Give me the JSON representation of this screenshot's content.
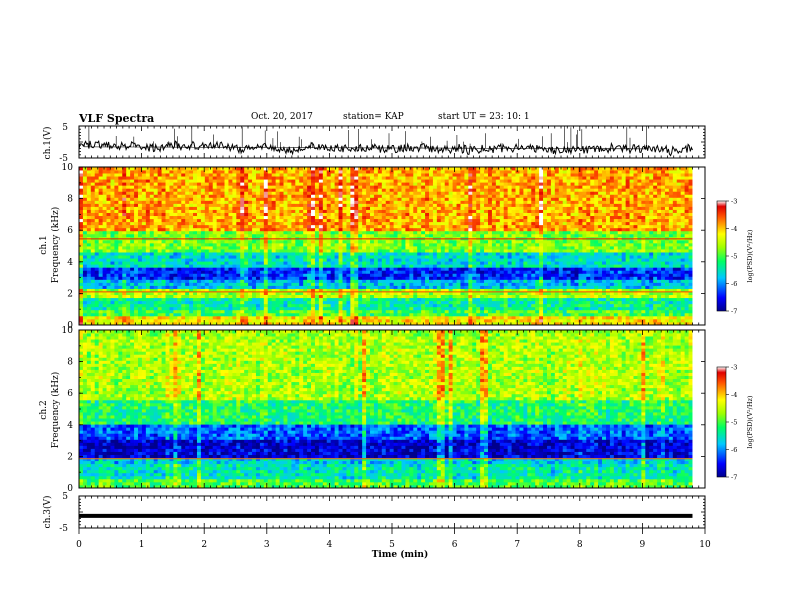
{
  "header": {
    "title": "VLF Spectra",
    "date": "Oct. 20, 2017",
    "station": "station= KAP",
    "start": "start  UT =   23: 10: 1"
  },
  "chart_data": [
    {
      "type": "line",
      "panel": "ch1-waveform",
      "ylabel": "ch.1(V)",
      "ylim": [
        -5,
        5
      ],
      "ytick_labels": [
        "5",
        "-5"
      ],
      "xlim": [
        0,
        9.8
      ],
      "series": [
        {
          "level_start": -1.5,
          "level_end": -2.2,
          "noise_amplitude": 2.5,
          "spike_max": 5
        }
      ]
    },
    {
      "type": "heatmap",
      "panel": "ch1-spectrogram",
      "ylabel": "Frequency  (kHz)",
      "channel_label": "ch.1",
      "yticks": [
        0,
        2,
        4,
        6,
        8,
        10
      ],
      "ylim": [
        0,
        10
      ],
      "xlim": [
        0,
        9.8
      ],
      "colorbar": {
        "label": "log(PSD)(V²/Hz)",
        "ticks": [
          -3,
          -4,
          -5,
          -6,
          -7
        ],
        "range": [
          -7,
          -3
        ]
      },
      "bands": [
        {
          "from": 0,
          "to": 0.5,
          "value": -4.2
        },
        {
          "from": 0.5,
          "to": 1.0,
          "value": -5.0
        },
        {
          "from": 1.0,
          "to": 1.8,
          "value": -5.4
        },
        {
          "from": 1.8,
          "to": 2.4,
          "value": -4.6
        },
        {
          "from": 2.4,
          "to": 2.9,
          "value": -5.8
        },
        {
          "from": 2.9,
          "to": 3.6,
          "value": -6.4
        },
        {
          "from": 3.6,
          "to": 4.7,
          "value": -5.6
        },
        {
          "from": 4.7,
          "to": 6.0,
          "value": -4.8
        },
        {
          "from": 6.0,
          "to": 10.0,
          "value": -3.9
        }
      ],
      "lines": [
        {
          "f": 5.45,
          "value": -3.3
        },
        {
          "f": 2.1,
          "value": -3.5
        }
      ]
    },
    {
      "type": "heatmap",
      "panel": "ch2-spectrogram",
      "ylabel": "Frequency  (kHz)",
      "channel_label": "ch.2",
      "yticks": [
        0,
        2,
        4,
        6,
        8,
        10
      ],
      "ylim": [
        0,
        10
      ],
      "xlim": [
        0,
        9.8
      ],
      "colorbar": {
        "label": "log(PSD)(V²/Hz)",
        "ticks": [
          -3,
          -4,
          -5,
          -6,
          -7
        ],
        "range": [
          -7,
          -3
        ]
      },
      "bands": [
        {
          "from": 0,
          "to": 0.6,
          "value": -5.0
        },
        {
          "from": 0.6,
          "to": 1.6,
          "value": -5.5
        },
        {
          "from": 1.6,
          "to": 2.0,
          "value": -5.7
        },
        {
          "from": 2.0,
          "to": 3.0,
          "value": -6.7
        },
        {
          "from": 3.0,
          "to": 4.0,
          "value": -6.2
        },
        {
          "from": 4.0,
          "to": 5.5,
          "value": -5.2
        },
        {
          "from": 5.5,
          "to": 10.0,
          "value": -4.6
        }
      ],
      "lines": [
        {
          "f": 1.85,
          "value": -3.6
        }
      ]
    },
    {
      "type": "line",
      "panel": "ch3-waveform",
      "ylabel": "ch.3(V)",
      "ylim": [
        -5,
        5
      ],
      "ytick_labels": [
        "5",
        "-5"
      ],
      "xlim": [
        0,
        9.8
      ],
      "series": [
        {
          "level_start": -1.2,
          "level_end": -1.2,
          "noise_amplitude": 0,
          "spike_max": 0
        }
      ]
    }
  ],
  "xaxis": {
    "label": "Time  (min)",
    "ticks": [
      0,
      1,
      2,
      3,
      4,
      5,
      6,
      7,
      8,
      9,
      10
    ],
    "range": [
      0,
      10
    ]
  }
}
